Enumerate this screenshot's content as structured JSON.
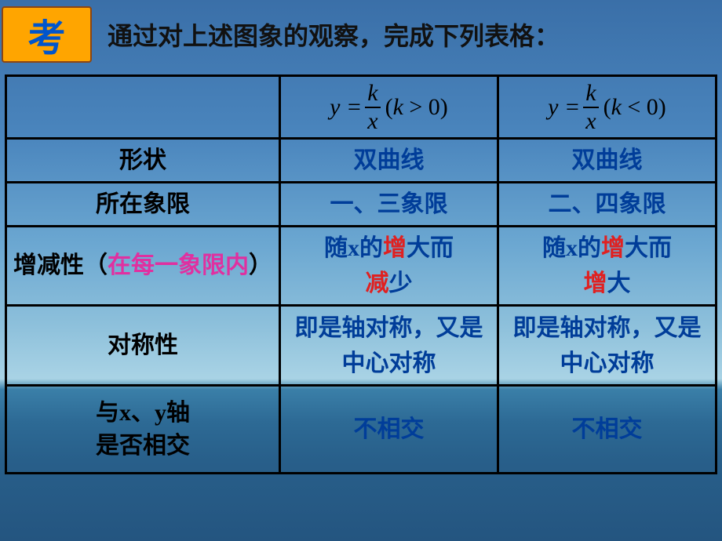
{
  "header": {
    "logo_text": "考",
    "title": "通过对上述图象的观察，完成下列表格："
  },
  "columns": {
    "k_pos_prefix": "y =",
    "k_pos_num": "k",
    "k_pos_den": "x",
    "k_pos_cond_open": "(",
    "k_pos_cond_k": "k",
    "k_pos_cond_rest": " > 0)",
    "k_neg_prefix": "y =",
    "k_neg_num": "k",
    "k_neg_den": "x",
    "k_neg_cond_open": "(",
    "k_neg_cond_k": "k",
    "k_neg_cond_rest": " < 0)"
  },
  "rows": {
    "shape": {
      "label": "形状",
      "k_pos": "双曲线",
      "k_neg": "双曲线"
    },
    "quadrant": {
      "label": "所在象限",
      "k_pos": "一、三象限",
      "k_neg": "二、四象限"
    },
    "monotonicity": {
      "label_pre": "增减性（",
      "label_hi": "在每一象限内",
      "label_post": "）",
      "kpos_p1": "随",
      "kpos_x": "x",
      "kpos_p2": "的",
      "kpos_red1": "增",
      "kpos_p3": "大而",
      "kpos_red2": "减",
      "kpos_p4": "少",
      "kneg_p1": "随",
      "kneg_x": "x",
      "kneg_p2": "的",
      "kneg_red1": "增",
      "kneg_p3": "大而",
      "kneg_red2": "增",
      "kneg_p4": "大"
    },
    "symmetry": {
      "label": "对称性",
      "k_pos": "即是轴对称，又是中心对称",
      "k_neg": "即是轴对称，又是中心对称"
    },
    "intersect": {
      "label_pre": "与",
      "label_x": "x",
      "label_mid": "、",
      "label_y": "y",
      "label_post": "轴",
      "label_line2": "是否相交",
      "k_pos": "不相交",
      "k_neg": "不相交"
    }
  }
}
